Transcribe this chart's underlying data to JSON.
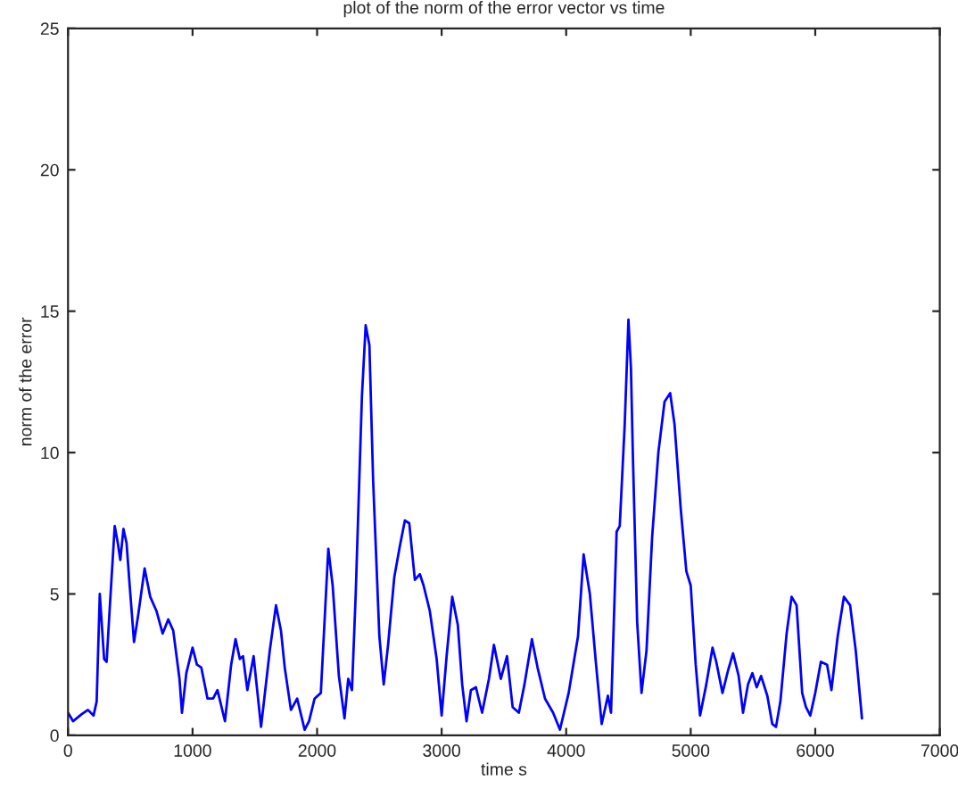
{
  "chart_data": {
    "type": "line",
    "title": "plot of the norm of the error vector vs time",
    "xlabel": "time s",
    "ylabel": "norm of the error",
    "xlim": [
      0,
      7000
    ],
    "xticks": [
      0,
      1000,
      2000,
      3000,
      4000,
      5000,
      6000,
      7000
    ],
    "ylim": [
      0,
      25
    ],
    "yticks": [
      0,
      5,
      10,
      15,
      20,
      25
    ],
    "grid": false,
    "legend": false,
    "series": [
      {
        "color": "#0000ff",
        "x": [
          0,
          40,
          110,
          160,
          205,
          230,
          255,
          290,
          310,
          335,
          375,
          400,
          420,
          445,
          470,
          495,
          530,
          565,
          615,
          660,
          710,
          760,
          805,
          845,
          895,
          915,
          950,
          1000,
          1035,
          1070,
          1120,
          1165,
          1200,
          1260,
          1310,
          1345,
          1380,
          1405,
          1440,
          1490,
          1550,
          1620,
          1670,
          1710,
          1740,
          1790,
          1840,
          1900,
          1935,
          1980,
          2030,
          2090,
          2125,
          2175,
          2220,
          2250,
          2280,
          2310,
          2360,
          2390,
          2420,
          2450,
          2500,
          2535,
          2570,
          2620,
          2665,
          2705,
          2740,
          2785,
          2825,
          2855,
          2905,
          2960,
          3000,
          3040,
          3085,
          3130,
          3165,
          3200,
          3235,
          3275,
          3325,
          3380,
          3420,
          3475,
          3525,
          3570,
          3620,
          3665,
          3725,
          3770,
          3830,
          3895,
          3950,
          4020,
          4095,
          4140,
          4190,
          4240,
          4285,
          4335,
          4360,
          4405,
          4430,
          4470,
          4500,
          4520,
          4535,
          4570,
          4605,
          4645,
          4690,
          4740,
          4790,
          4835,
          4870,
          4920,
          4965,
          5000,
          5040,
          5075,
          5125,
          5175,
          5205,
          5255,
          5300,
          5340,
          5385,
          5420,
          5460,
          5495,
          5530,
          5565,
          5615,
          5655,
          5685,
          5720,
          5770,
          5810,
          5850,
          5895,
          5925,
          5960,
          6000,
          6045,
          6095,
          6130,
          6180,
          6230,
          6280,
          6325,
          6375
        ],
        "values": [
          0.8,
          0.5,
          0.75,
          0.9,
          0.7,
          1.2,
          5.0,
          2.7,
          2.6,
          4.5,
          7.4,
          6.8,
          6.2,
          7.3,
          6.8,
          5.3,
          3.3,
          4.3,
          5.9,
          4.9,
          4.4,
          3.6,
          4.1,
          3.7,
          2.0,
          0.8,
          2.2,
          3.1,
          2.5,
          2.4,
          1.3,
          1.3,
          1.6,
          0.5,
          2.5,
          3.4,
          2.7,
          2.8,
          1.6,
          2.8,
          0.3,
          3.0,
          4.6,
          3.7,
          2.4,
          0.9,
          1.3,
          0.2,
          0.5,
          1.3,
          1.5,
          6.6,
          5.3,
          2.1,
          0.6,
          2.0,
          1.6,
          5.0,
          12.0,
          14.5,
          13.8,
          9.0,
          3.5,
          1.8,
          3.2,
          5.6,
          6.7,
          7.6,
          7.5,
          5.5,
          5.7,
          5.3,
          4.4,
          2.7,
          0.7,
          2.8,
          4.9,
          3.9,
          1.8,
          0.5,
          1.6,
          1.7,
          0.8,
          2.0,
          3.2,
          2.0,
          2.8,
          1.0,
          0.8,
          1.8,
          3.4,
          2.4,
          1.3,
          0.8,
          0.2,
          1.5,
          3.5,
          6.4,
          5.0,
          2.5,
          0.4,
          1.4,
          0.8,
          7.2,
          7.4,
          11.0,
          14.7,
          13.0,
          10.0,
          4.0,
          1.5,
          3.0,
          7.0,
          10.0,
          11.8,
          12.1,
          11.0,
          8.0,
          5.8,
          5.3,
          2.5,
          0.7,
          1.8,
          3.1,
          2.6,
          1.5,
          2.3,
          2.9,
          2.1,
          0.8,
          1.8,
          2.2,
          1.7,
          2.1,
          1.4,
          0.4,
          0.3,
          1.2,
          3.6,
          4.9,
          4.6,
          1.5,
          1.0,
          0.7,
          1.5,
          2.6,
          2.5,
          1.6,
          3.5,
          4.9,
          4.6,
          3.0,
          0.6
        ]
      }
    ]
  }
}
